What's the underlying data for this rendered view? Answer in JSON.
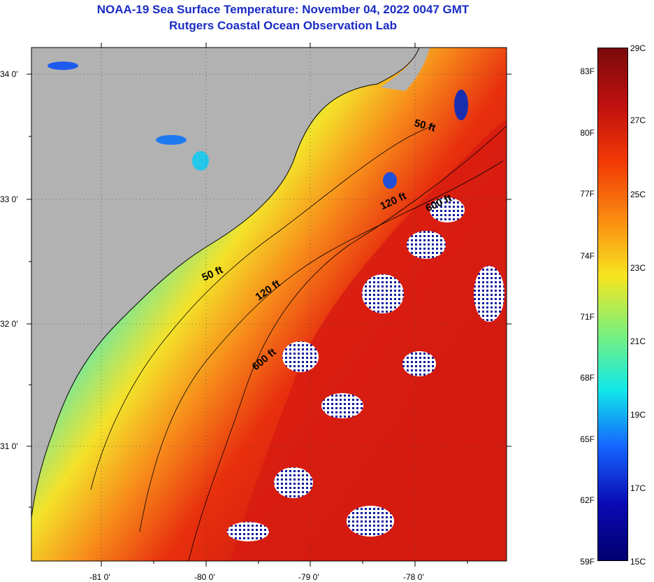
{
  "header": {
    "title": "NOAA-19 Sea Surface Temperature:  November 04, 2022 0047 GMT",
    "subtitle": "Rutgers Coastal Ocean Observation Lab"
  },
  "map": {
    "lat_labels": [
      "34 0'",
      "33 0'",
      "32 0'",
      "31 0'"
    ],
    "lon_labels": [
      "-81 0'",
      "-80 0'",
      "-79 0'",
      "-78 0'"
    ],
    "contours": [
      "50 ft",
      "120 ft",
      "600 ft",
      "50 ft",
      "120 ft",
      "600 ft"
    ]
  },
  "colorbar": {
    "fahrenheit": [
      "83F",
      "80F",
      "77F",
      "74F",
      "71F",
      "68F",
      "65F",
      "62F",
      "59F"
    ],
    "celsius": [
      "29C",
      "27C",
      "25C",
      "23C",
      "21C",
      "19C",
      "17C",
      "15C"
    ],
    "colors": [
      "#7a0a0a",
      "#c01010",
      "#f23a05",
      "#fa8a10",
      "#f7e51f",
      "#7df07a",
      "#10e8e8",
      "#1565ff",
      "#0a0ab4",
      "#000070"
    ]
  }
}
